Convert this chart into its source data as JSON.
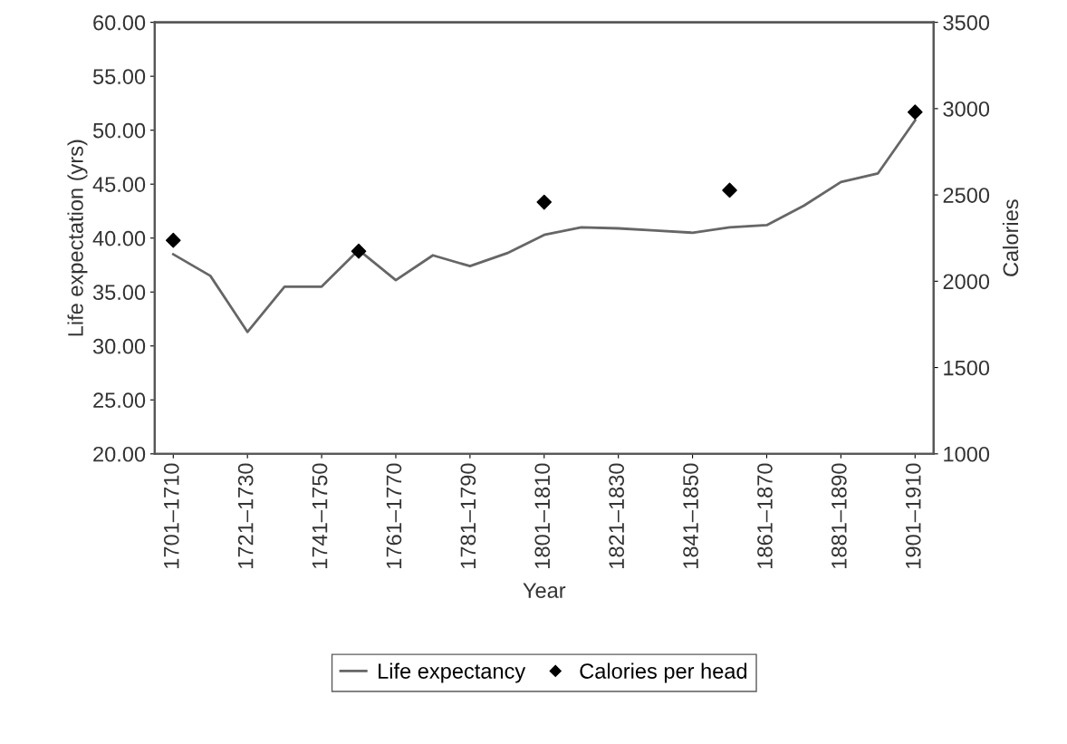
{
  "chart_data": {
    "type": "line",
    "xlabel": "Year",
    "ylabel": "Life expectation (yrs)",
    "y2label": "Calories",
    "categories": [
      "1701–1710",
      null,
      "1721–1730",
      null,
      "1741–1750",
      null,
      "1761–1770",
      null,
      "1781–1790",
      null,
      "1801–1810",
      null,
      "1821–1830",
      null,
      "1841–1850",
      null,
      "1861–1870",
      null,
      "1881–1890",
      null,
      "1901–1910"
    ],
    "series": [
      {
        "name": "Life expectancy",
        "color": "#666666",
        "marker": "none",
        "values": [
          38.5,
          36.5,
          31.3,
          35.5,
          35.5,
          38.9,
          36.1,
          38.4,
          37.4,
          38.6,
          40.3,
          41.0,
          40.9,
          40.7,
          40.5,
          41.0,
          41.2,
          43.0,
          45.2,
          46.0,
          50.9
        ]
      },
      {
        "name": "Calories per head",
        "type": "scatter",
        "axis": "y2",
        "color": "#000000",
        "marker": "diamond",
        "values": [
          2237,
          null,
          null,
          null,
          null,
          2174,
          null,
          null,
          null,
          null,
          2458,
          null,
          null,
          null,
          null,
          2527,
          null,
          null,
          null,
          null,
          2980
        ]
      }
    ],
    "ylim": [
      20,
      60
    ],
    "yticks": [
      {
        "value": 20,
        "label": "20.00"
      },
      {
        "value": 25,
        "label": "25.00"
      },
      {
        "value": 30,
        "label": "30.00"
      },
      {
        "value": 35,
        "label": "35.00"
      },
      {
        "value": 40,
        "label": "40.00"
      },
      {
        "value": 45,
        "label": "45.00"
      },
      {
        "value": 50,
        "label": "50.00"
      },
      {
        "value": 55,
        "label": "55.00"
      },
      {
        "value": 60,
        "label": "60.00"
      }
    ],
    "y2lim": [
      1000,
      3500
    ],
    "y2ticks": [
      1000,
      1500,
      2000,
      2500,
      3000,
      3500
    ],
    "grid": false,
    "legend": "bottom"
  }
}
